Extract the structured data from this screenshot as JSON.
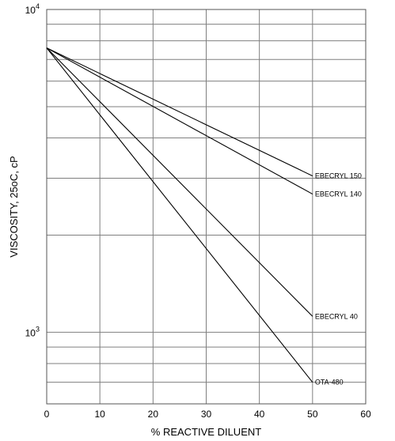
{
  "chart_data": {
    "type": "line",
    "title": "",
    "xlabel": "% REACTIVE DILUENT",
    "ylabel": "VISCOSITY, 25oC, cP",
    "xlim": [
      0,
      60
    ],
    "ylim": [
      600,
      10000
    ],
    "y_scale": "log",
    "grid": true,
    "x_ticks": [
      0,
      10,
      20,
      30,
      40,
      50,
      60
    ],
    "y_tick_labels": [
      {
        "base": "10",
        "exp": "4",
        "value": 10000
      },
      {
        "base": "10",
        "exp": "3",
        "value": 1000
      }
    ],
    "y_gridlines": [
      10000,
      9000,
      8000,
      7000,
      6000,
      5000,
      4000,
      3000,
      2000,
      1000,
      900,
      800,
      700
    ],
    "series": [
      {
        "name": "EBECRYL 150",
        "x": [
          0,
          50
        ],
        "y": [
          7600,
          3050
        ]
      },
      {
        "name": "EBECRYL 140",
        "x": [
          0,
          50
        ],
        "y": [
          7600,
          2680
        ]
      },
      {
        "name": "EBECRYL 40",
        "x": [
          0,
          50
        ],
        "y": [
          7600,
          1120
        ]
      },
      {
        "name": "OTA-480",
        "x": [
          0,
          50
        ],
        "y": [
          7600,
          700
        ]
      }
    ]
  }
}
